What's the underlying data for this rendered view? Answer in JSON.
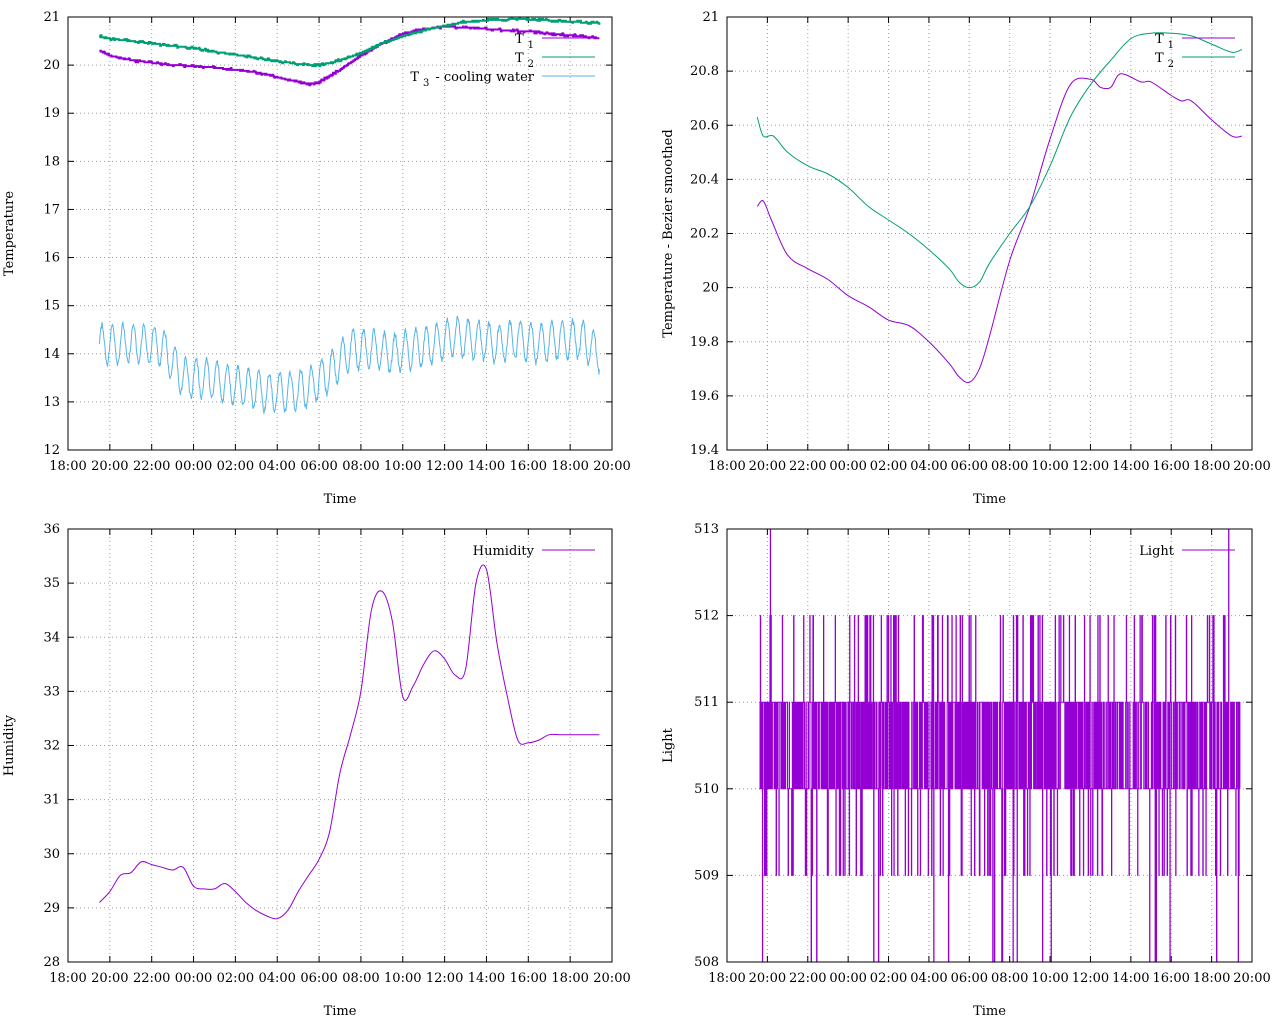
{
  "chart_data": [
    {
      "type": "line",
      "xlabel": "Time",
      "ylabel": "Temperature",
      "ylim": [
        12,
        21
      ],
      "yticks": [
        12,
        13,
        14,
        15,
        16,
        17,
        18,
        19,
        20,
        21
      ],
      "xlim_hours": [
        18,
        44
      ],
      "xtick_labels": [
        "18:00",
        "20:00",
        "22:00",
        "00:00",
        "02:00",
        "04:00",
        "06:00",
        "08:00",
        "10:00",
        "12:00",
        "14:00",
        "16:00",
        "18:00",
        "20:00"
      ],
      "grid": true,
      "legend_position": "top-right",
      "series": [
        {
          "name": "T",
          "subscript": "1",
          "suffix": "",
          "color": "#9400d3",
          "style": "steps",
          "x": [
            19.5,
            20,
            21,
            22,
            23,
            24,
            25,
            26,
            27,
            28,
            29,
            29.5,
            30,
            31,
            32,
            33,
            34,
            35,
            36,
            37,
            38,
            39,
            40,
            41,
            42,
            43,
            43.4
          ],
          "y": [
            20.3,
            20.2,
            20.1,
            20.05,
            20.0,
            19.98,
            19.95,
            19.9,
            19.85,
            19.75,
            19.65,
            19.6,
            19.65,
            19.9,
            20.2,
            20.45,
            20.65,
            20.75,
            20.8,
            20.78,
            20.75,
            20.72,
            20.7,
            20.65,
            20.62,
            20.58,
            20.55
          ]
        },
        {
          "name": "T",
          "subscript": "2",
          "suffix": "",
          "color": "#009e73",
          "style": "steps",
          "x": [
            19.5,
            20,
            21,
            22,
            23,
            24,
            25,
            26,
            27,
            28,
            29,
            30,
            31,
            32,
            33,
            34,
            35,
            36,
            37,
            38,
            39,
            40,
            41,
            42,
            43,
            43.4
          ],
          "y": [
            20.6,
            20.55,
            20.5,
            20.45,
            20.4,
            20.35,
            20.28,
            20.22,
            20.15,
            20.08,
            20.02,
            20.0,
            20.1,
            20.25,
            20.45,
            20.6,
            20.72,
            20.82,
            20.9,
            20.93,
            20.95,
            20.95,
            20.93,
            20.9,
            20.88,
            20.87
          ]
        },
        {
          "name": "T",
          "subscript": "3",
          "suffix": "- cooling water",
          "color": "#56b4e9",
          "style": "oscillate",
          "x": [
            19.5,
            20.5,
            21.5,
            22.5,
            23.5,
            24.5,
            25.5,
            26.5,
            27.5,
            28.5,
            29.5,
            30.5,
            31.5,
            32.5,
            33.5,
            34.5,
            35.5,
            36.5,
            37.5,
            38.5,
            39.5,
            40.5,
            41.5,
            42.5,
            43.4
          ],
          "y": [
            14.2,
            14.2,
            14.2,
            14.15,
            13.5,
            13.5,
            13.4,
            13.3,
            13.2,
            13.2,
            13.3,
            13.6,
            14.1,
            14.1,
            14.0,
            14.1,
            14.2,
            14.35,
            14.3,
            14.2,
            14.3,
            14.2,
            14.3,
            14.3,
            14.0
          ],
          "amplitude": 0.4,
          "period_hours": 0.5
        }
      ]
    },
    {
      "type": "line",
      "xlabel": "Time",
      "ylabel": "Temperature - Bezier smoothed",
      "ylim": [
        19.4,
        21
      ],
      "yticks": [
        19.4,
        19.6,
        19.8,
        20,
        20.2,
        20.4,
        20.6,
        20.8,
        21
      ],
      "xlim_hours": [
        18,
        44
      ],
      "xtick_labels": [
        "18:00",
        "20:00",
        "22:00",
        "00:00",
        "02:00",
        "04:00",
        "06:00",
        "08:00",
        "10:00",
        "12:00",
        "14:00",
        "16:00",
        "18:00",
        "20:00"
      ],
      "grid": true,
      "legend_position": "top-right",
      "series": [
        {
          "name": "T",
          "subscript": "1",
          "suffix": "",
          "color": "#9400d3",
          "x": [
            19.5,
            19.8,
            20.2,
            21,
            22,
            23,
            24,
            25,
            26,
            27,
            28,
            29,
            29.5,
            30,
            30.5,
            31,
            32,
            33,
            34,
            35,
            36,
            36.5,
            37,
            37.5,
            38.5,
            39,
            40,
            40.5,
            41,
            42,
            43,
            43.5
          ],
          "y": [
            20.3,
            20.32,
            20.25,
            20.12,
            20.07,
            20.03,
            19.97,
            19.93,
            19.88,
            19.86,
            19.8,
            19.72,
            19.67,
            19.65,
            19.7,
            19.82,
            20.1,
            20.3,
            20.55,
            20.75,
            20.77,
            20.74,
            20.74,
            20.79,
            20.76,
            20.76,
            20.71,
            20.69,
            20.69,
            20.62,
            20.56,
            20.56
          ]
        },
        {
          "name": "T",
          "subscript": "2",
          "suffix": "",
          "color": "#009e73",
          "x": [
            19.5,
            19.8,
            20.3,
            21,
            22,
            23,
            24,
            25,
            26,
            27,
            28,
            29,
            29.5,
            30,
            30.5,
            31,
            32,
            33,
            34,
            35,
            36,
            37,
            38,
            39,
            40,
            41,
            42,
            43,
            43.5
          ],
          "y": [
            20.63,
            20.56,
            20.56,
            20.5,
            20.45,
            20.42,
            20.37,
            20.3,
            20.25,
            20.2,
            20.14,
            20.07,
            20.02,
            20.0,
            20.02,
            20.09,
            20.2,
            20.3,
            20.45,
            20.63,
            20.75,
            20.84,
            20.92,
            20.94,
            20.94,
            20.93,
            20.9,
            20.87,
            20.88
          ]
        }
      ]
    },
    {
      "type": "line",
      "xlabel": "Time",
      "ylabel": "Humidity",
      "ylim": [
        28,
        36
      ],
      "yticks": [
        28,
        29,
        30,
        31,
        32,
        33,
        34,
        35,
        36
      ],
      "xlim_hours": [
        18,
        44
      ],
      "xtick_labels": [
        "18:00",
        "20:00",
        "22:00",
        "00:00",
        "02:00",
        "04:00",
        "06:00",
        "08:00",
        "10:00",
        "12:00",
        "14:00",
        "16:00",
        "18:00",
        "20:00"
      ],
      "grid": true,
      "legend_position": "top-right",
      "series": [
        {
          "name": "Humidity",
          "subscript": "",
          "suffix": "",
          "color": "#9400d3",
          "x": [
            19.5,
            20,
            20.5,
            21,
            21.5,
            22,
            22.5,
            23,
            23.5,
            24,
            24.5,
            25,
            25.5,
            26,
            26.5,
            27,
            27.5,
            28,
            28.5,
            29,
            29.5,
            30,
            30.5,
            31,
            31.5,
            32,
            32.5,
            33,
            33.5,
            34,
            34.5,
            35,
            35.5,
            36,
            36.5,
            37,
            37.5,
            38,
            38.5,
            39,
            39.5,
            40,
            40.5,
            41,
            41.5,
            42,
            42.5,
            43,
            43.4
          ],
          "y": [
            29.1,
            29.3,
            29.6,
            29.65,
            29.85,
            29.8,
            29.75,
            29.7,
            29.75,
            29.4,
            29.35,
            29.35,
            29.45,
            29.3,
            29.1,
            28.95,
            28.85,
            28.8,
            28.95,
            29.3,
            29.6,
            29.9,
            30.4,
            31.5,
            32.2,
            33.0,
            34.5,
            34.85,
            34.3,
            32.9,
            33.1,
            33.5,
            33.75,
            33.6,
            33.3,
            33.4,
            35.0,
            35.25,
            33.9,
            32.9,
            32.1,
            32.05,
            32.1,
            32.2,
            32.2,
            32.2,
            32.2,
            32.2,
            32.2
          ]
        }
      ]
    },
    {
      "type": "line",
      "xlabel": "Time",
      "ylabel": "Light",
      "ylim": [
        508,
        513
      ],
      "yticks": [
        508,
        509,
        510,
        511,
        512,
        513
      ],
      "xlim_hours": [
        18,
        44
      ],
      "xtick_labels": [
        "18:00",
        "20:00",
        "22:00",
        "00:00",
        "02:00",
        "04:00",
        "06:00",
        "08:00",
        "10:00",
        "12:00",
        "14:00",
        "16:00",
        "18:00",
        "20:00"
      ],
      "grid": true,
      "legend_position": "top-right",
      "series": [
        {
          "name": "Light",
          "subscript": "",
          "suffix": "",
          "color": "#9400d3",
          "style": "noise",
          "x_range": [
            19.6,
            43.4
          ],
          "base_low": 510,
          "base_high": 511,
          "spike_high": 512,
          "spike_low": 509,
          "extreme_low": 508,
          "extreme_high": 513
        }
      ]
    }
  ]
}
